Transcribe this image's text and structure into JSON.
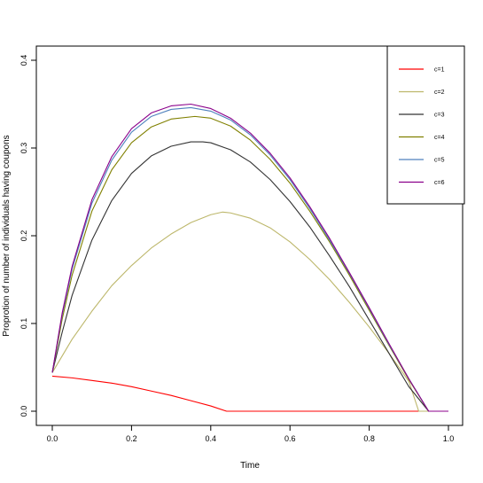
{
  "chart_data": {
    "type": "line",
    "title": "",
    "xlabel": "Time",
    "ylabel": "Proprotion of number of individuals having coupons",
    "xlim": [
      0,
      1
    ],
    "ylim": [
      0,
      0.4
    ],
    "x_ticks": [
      "0.0",
      "0.2",
      "0.4",
      "0.6",
      "0.8",
      "1.0"
    ],
    "y_ticks": [
      "0.0",
      "0.1",
      "0.2",
      "0.3",
      "0.4"
    ],
    "grid": false,
    "legend_position": "top-right",
    "series": [
      {
        "name": "c=1",
        "color": "#ff0000",
        "x": [
          0.0,
          0.05,
          0.1,
          0.15,
          0.2,
          0.25,
          0.3,
          0.35,
          0.4,
          0.44,
          0.5,
          0.6,
          0.7,
          0.8,
          0.9,
          1.0
        ],
        "y": [
          0.04,
          0.038,
          0.035,
          0.032,
          0.028,
          0.023,
          0.018,
          0.012,
          0.006,
          0.0,
          0.0,
          0.0,
          0.0,
          0.0,
          0.0,
          0.0
        ]
      },
      {
        "name": "c=2",
        "color": "#bdb76b",
        "x": [
          0.0,
          0.05,
          0.1,
          0.15,
          0.2,
          0.25,
          0.3,
          0.35,
          0.4,
          0.43,
          0.45,
          0.5,
          0.55,
          0.6,
          0.65,
          0.7,
          0.75,
          0.8,
          0.85,
          0.9,
          0.925,
          0.95,
          1.0
        ],
        "y": [
          0.044,
          0.082,
          0.114,
          0.143,
          0.166,
          0.186,
          0.202,
          0.215,
          0.224,
          0.227,
          0.226,
          0.22,
          0.209,
          0.193,
          0.173,
          0.15,
          0.124,
          0.096,
          0.066,
          0.034,
          0.0,
          0.0,
          0.0
        ]
      },
      {
        "name": "c=3",
        "color": "#333333",
        "x": [
          0.0,
          0.025,
          0.05,
          0.1,
          0.15,
          0.2,
          0.25,
          0.3,
          0.35,
          0.38,
          0.4,
          0.45,
          0.5,
          0.55,
          0.6,
          0.65,
          0.7,
          0.75,
          0.8,
          0.85,
          0.9,
          0.95,
          1.0
        ],
        "y": [
          0.044,
          0.09,
          0.132,
          0.195,
          0.24,
          0.271,
          0.291,
          0.302,
          0.307,
          0.307,
          0.306,
          0.298,
          0.284,
          0.264,
          0.239,
          0.21,
          0.177,
          0.142,
          0.104,
          0.066,
          0.028,
          0.0,
          0.0
        ]
      },
      {
        "name": "c=4",
        "color": "#808000",
        "x": [
          0.0,
          0.025,
          0.05,
          0.1,
          0.15,
          0.2,
          0.25,
          0.3,
          0.36,
          0.4,
          0.45,
          0.5,
          0.55,
          0.6,
          0.65,
          0.7,
          0.75,
          0.8,
          0.85,
          0.9,
          0.95,
          0.96,
          1.0
        ],
        "y": [
          0.044,
          0.105,
          0.155,
          0.228,
          0.275,
          0.306,
          0.324,
          0.333,
          0.336,
          0.334,
          0.325,
          0.309,
          0.287,
          0.26,
          0.228,
          0.193,
          0.155,
          0.115,
          0.075,
          0.036,
          0.0,
          0.0,
          0.0
        ]
      },
      {
        "name": "c=5",
        "color": "#4f81bd",
        "x": [
          0.0,
          0.025,
          0.05,
          0.1,
          0.15,
          0.2,
          0.25,
          0.3,
          0.35,
          0.4,
          0.45,
          0.5,
          0.55,
          0.6,
          0.65,
          0.7,
          0.75,
          0.8,
          0.85,
          0.9,
          0.95,
          0.96,
          1.0
        ],
        "y": [
          0.044,
          0.11,
          0.162,
          0.237,
          0.286,
          0.318,
          0.336,
          0.344,
          0.346,
          0.342,
          0.332,
          0.315,
          0.292,
          0.264,
          0.231,
          0.195,
          0.157,
          0.117,
          0.076,
          0.037,
          0.0,
          0.0,
          0.0
        ]
      },
      {
        "name": "c=6",
        "color": "#8b008b",
        "x": [
          0.0,
          0.025,
          0.05,
          0.1,
          0.15,
          0.2,
          0.25,
          0.3,
          0.35,
          0.4,
          0.45,
          0.5,
          0.55,
          0.6,
          0.65,
          0.7,
          0.75,
          0.8,
          0.85,
          0.9,
          0.95,
          0.96,
          1.0
        ],
        "y": [
          0.044,
          0.112,
          0.165,
          0.241,
          0.29,
          0.322,
          0.34,
          0.348,
          0.35,
          0.345,
          0.334,
          0.317,
          0.294,
          0.266,
          0.233,
          0.197,
          0.158,
          0.118,
          0.077,
          0.037,
          0.0,
          0.0,
          0.0
        ]
      }
    ]
  }
}
